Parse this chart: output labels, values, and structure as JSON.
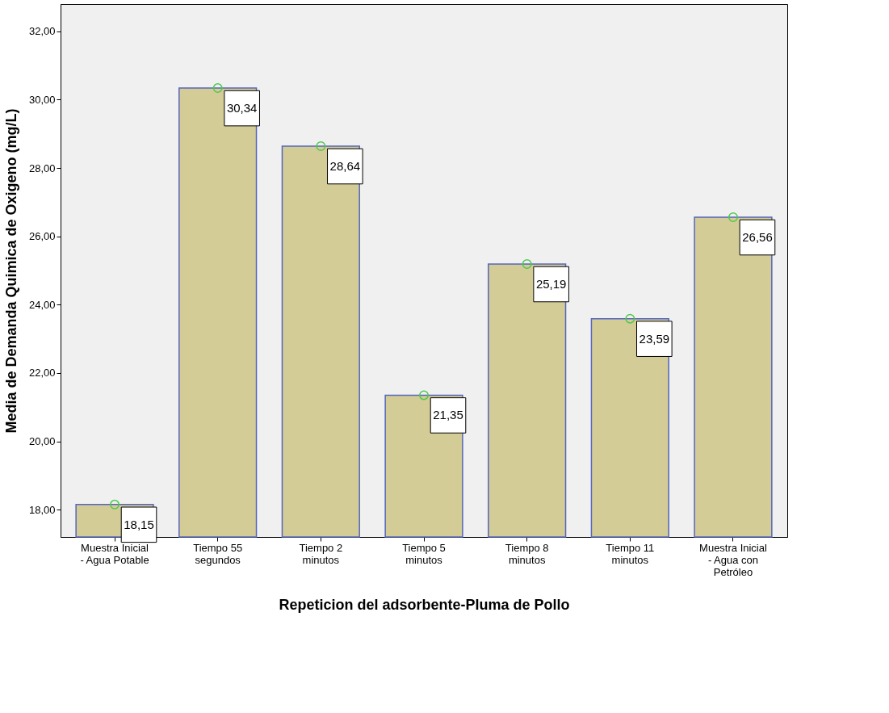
{
  "chart_data": {
    "type": "bar",
    "xlabel": "Repeticion del adsorbente-Pluma de Pollo",
    "ylabel": "Media de Demanda Quimica de Oxigeno (mg/L)",
    "categories": [
      "Muestra Inicial - Agua Potable",
      "Tiempo 55 segundos",
      "Tiempo 2 minutos",
      "Tiempo 5 minutos",
      "Tiempo 8 minutos",
      "Tiempo 11 minutos",
      "Muestra Inicial - Agua con Petróleo"
    ],
    "series": [
      {
        "color": "#d4cc96",
        "values": [
          18.15,
          30.34,
          28.64,
          21.35,
          25.19,
          23.59,
          26.56
        ],
        "value_labels": [
          "18,15",
          "30,34",
          "28,64",
          "21,35",
          "25,19",
          "23,59",
          "26,56"
        ]
      },
      {
        "type": "scatter",
        "color": "#4fc94f",
        "marker": "circle",
        "x": [
          "Muestra Inicial - Agua Potable",
          "Tiempo 55 segundos",
          "Tiempo 2 minutos",
          "Tiempo 5 minutos",
          "Tiempo 8 minutos",
          "Tiempo 11 minutos",
          "Muestra Inicial - Agua con Petróleo"
        ],
        "values": [
          18.15,
          30.34,
          28.64,
          21.35,
          25.19,
          23.59,
          26.56
        ]
      }
    ],
    "ylim": [
      17.2,
      32.8
    ],
    "yticks": [
      {
        "value": 18,
        "label": "18,00"
      },
      {
        "value": 20,
        "label": "20,00"
      },
      {
        "value": 22,
        "label": "22,00"
      },
      {
        "value": 24,
        "label": "24,00"
      },
      {
        "value": 26,
        "label": "26,00"
      },
      {
        "value": 28,
        "label": "28,00"
      },
      {
        "value": 30,
        "label": "30,00"
      },
      {
        "value": 32,
        "label": "32,00"
      }
    ],
    "grid": false
  }
}
